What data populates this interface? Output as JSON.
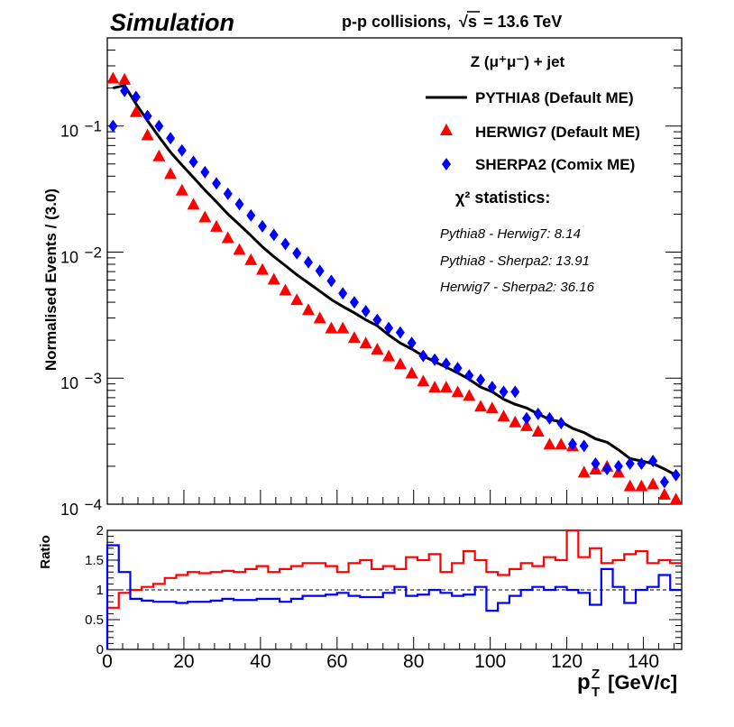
{
  "chart_data": [
    {
      "type": "line",
      "panel": "main",
      "header_left": "Simulation",
      "header_right": "p-p collisions,",
      "energy_sym": "s",
      "energy_value": " = 13.6 TeV",
      "ylabel": "Normalised Events / (3.0)",
      "ylog": true,
      "ylim": [
        0.0001,
        0.5
      ],
      "xlim": [
        0,
        150
      ],
      "yticks": [
        {
          "value": 0.1,
          "base": "10",
          "exp": "−1"
        },
        {
          "value": 0.01,
          "base": "10",
          "exp": "−2"
        },
        {
          "value": 0.001,
          "base": "10",
          "exp": "−3"
        },
        {
          "value": 0.0001,
          "base": "10",
          "exp": "−4"
        }
      ],
      "legend": {
        "header": "Z (μ⁺μ⁻) + jet",
        "entries": [
          {
            "name": "PYTHIA8 (Default ME)",
            "marker": "line",
            "color": "#000000"
          },
          {
            "name": "HERWIG7 (Default ME)",
            "marker": "triangle",
            "color": "#ff0000"
          },
          {
            "name": "SHERPA2 (Comix ME)",
            "marker": "diamond",
            "color": "#0000ff"
          }
        ],
        "position": "top-right"
      },
      "chi2": {
        "title": "χ² statistics:",
        "lines": [
          "Pythia8 - Herwig7: 8.14",
          "Pythia8 - Sherpa2: 13.91",
          "Herwig7 - Sherpa2: 36.16"
        ]
      },
      "x": [
        1.5,
        4.5,
        7.5,
        10.5,
        13.5,
        16.5,
        19.5,
        22.5,
        25.5,
        28.5,
        31.5,
        34.5,
        37.5,
        40.5,
        43.5,
        46.5,
        49.5,
        52.5,
        55.5,
        58.5,
        61.5,
        64.5,
        67.5,
        70.5,
        73.5,
        76.5,
        79.5,
        82.5,
        85.5,
        88.5,
        91.5,
        94.5,
        97.5,
        100.5,
        103.5,
        106.5,
        109.5,
        112.5,
        115.5,
        118.5,
        121.5,
        124.5,
        127.5,
        130.5,
        133.5,
        136.5,
        139.5,
        142.5,
        145.5,
        148.5
      ],
      "series": [
        {
          "name": "PYTHIA8",
          "values": [
            0.2,
            0.21,
            0.15,
            0.11,
            0.082,
            0.062,
            0.049,
            0.039,
            0.031,
            0.025,
            0.02,
            0.0165,
            0.0135,
            0.011,
            0.0092,
            0.0078,
            0.0066,
            0.0057,
            0.0049,
            0.0042,
            0.0037,
            0.0033,
            0.0029,
            0.0026,
            0.0022,
            0.0019,
            0.0017,
            0.0015,
            0.00135,
            0.00122,
            0.0011,
            0.00098,
            0.00085,
            0.00078,
            0.00068,
            0.00062,
            0.00058,
            0.00052,
            0.00047,
            0.00045,
            0.0004,
            0.00037,
            0.00033,
            0.00031,
            0.00027,
            0.00023,
            0.00022,
            0.00021,
            0.00019,
            0.00017
          ]
        },
        {
          "name": "HERWIG7",
          "values": [
            0.24,
            0.235,
            0.13,
            0.085,
            0.058,
            0.042,
            0.031,
            0.024,
            0.019,
            0.016,
            0.013,
            0.0105,
            0.0087,
            0.0073,
            0.0061,
            0.005,
            0.0042,
            0.0035,
            0.003,
            0.0025,
            0.0025,
            0.0021,
            0.0019,
            0.0017,
            0.0015,
            0.0013,
            0.0011,
            0.00095,
            0.00085,
            0.00085,
            0.00078,
            0.00073,
            0.0006,
            0.00058,
            0.0005,
            0.00045,
            0.00042,
            0.00038,
            0.0003,
            0.0003,
            0.00029,
            0.00018,
            0.00019,
            0.0002,
            0.00018,
            0.00014,
            0.00014,
            0.000145,
            0.00012,
            0.00011
          ]
        },
        {
          "name": "SHERPA2",
          "values": [
            0.1,
            0.19,
            0.17,
            0.12,
            0.1,
            0.08,
            0.064,
            0.052,
            0.043,
            0.035,
            0.029,
            0.024,
            0.0195,
            0.016,
            0.0137,
            0.0116,
            0.0098,
            0.0083,
            0.0071,
            0.0059,
            0.0047,
            0.004,
            0.0034,
            0.0029,
            0.0025,
            0.0023,
            0.0019,
            0.0015,
            0.0014,
            0.0013,
            0.0012,
            0.00105,
            0.00097,
            0.00085,
            0.00078,
            0.00078,
            0.00048,
            0.00052,
            0.00048,
            0.00044,
            0.0003,
            0.00029,
            0.00021,
            0.00019,
            0.0002,
            0.00021,
            0.00021,
            0.00022,
            0.00015,
            0.00017
          ]
        }
      ]
    },
    {
      "type": "line",
      "panel": "ratio",
      "ylabel": "Ratio",
      "ylim": [
        0,
        2
      ],
      "xlim": [
        0,
        150
      ],
      "yticks": [
        0,
        0.5,
        1,
        1.5,
        2
      ],
      "ytick_labels": [
        "0",
        "0.5",
        "1",
        "1.5",
        "2"
      ],
      "xticks": [
        0,
        20,
        40,
        60,
        80,
        100,
        120,
        140
      ],
      "xtick_labels": [
        "0",
        "20",
        "40",
        "60",
        "80",
        "100",
        "120",
        "140"
      ],
      "xlabel_main": "p",
      "xlabel_sub": "T",
      "xlabel_sup": "Z",
      "xlabel_unit": " [GeV/c]",
      "reference_line": 1,
      "bin_edges": [
        0,
        3,
        6,
        9,
        12,
        15,
        18,
        21,
        24,
        27,
        30,
        33,
        36,
        39,
        42,
        45,
        48,
        51,
        54,
        57,
        60,
        63,
        66,
        69,
        72,
        75,
        78,
        81,
        84,
        87,
        90,
        93,
        96,
        99,
        102,
        105,
        108,
        111,
        114,
        117,
        120,
        123,
        126,
        129,
        132,
        135,
        138,
        141,
        144,
        147,
        150
      ],
      "series": [
        {
          "name": "HERWIG7 / PYTHIA8",
          "color": "#ff0000",
          "values": [
            0.7,
            0.95,
            1.0,
            1.05,
            1.1,
            1.2,
            1.25,
            1.3,
            1.28,
            1.3,
            1.32,
            1.3,
            1.35,
            1.4,
            1.3,
            1.35,
            1.4,
            1.45,
            1.45,
            1.4,
            1.3,
            1.45,
            1.5,
            1.35,
            1.4,
            1.35,
            1.55,
            1.5,
            1.6,
            1.3,
            1.45,
            1.65,
            1.5,
            1.3,
            1.25,
            1.35,
            1.45,
            1.4,
            1.55,
            1.5,
            2.05,
            1.55,
            1.7,
            1.45,
            1.5,
            1.6,
            1.65,
            1.45,
            1.5,
            1.45
          ]
        },
        {
          "name": "SHERPA2 / PYTHIA8",
          "color": "#0000ff",
          "values": [
            1.75,
            1.3,
            0.85,
            0.82,
            0.8,
            0.8,
            0.78,
            0.8,
            0.8,
            0.82,
            0.85,
            0.83,
            0.83,
            0.85,
            0.85,
            0.8,
            0.85,
            0.9,
            0.9,
            0.92,
            0.95,
            0.9,
            0.88,
            0.88,
            0.95,
            1.05,
            0.9,
            0.92,
            1.0,
            0.95,
            0.9,
            0.92,
            1.05,
            0.65,
            0.78,
            0.9,
            1.0,
            1.05,
            1.0,
            1.05,
            1.0,
            0.95,
            0.75,
            1.35,
            1.05,
            0.78,
            1.0,
            1.05,
            1.25,
            1.0
          ]
        }
      ]
    }
  ]
}
